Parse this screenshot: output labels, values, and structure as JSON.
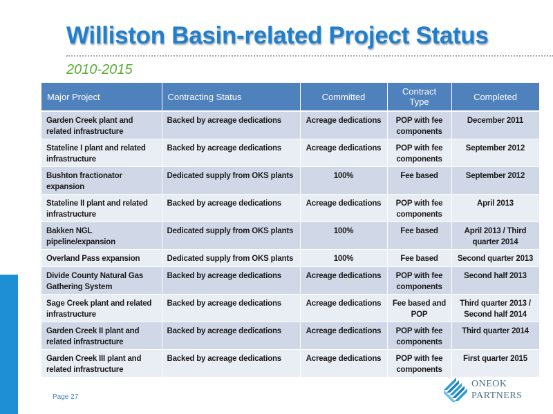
{
  "title": "Williston Basin-related Project Status",
  "subtitle": "2010-2015",
  "table": {
    "headers": [
      "Major Project",
      "Contracting Status",
      "Committed",
      "Contract Type",
      "Completed"
    ],
    "rows": [
      [
        "Garden Creek plant and related infrastructure",
        "Backed by acreage dedications",
        "Acreage dedications",
        "POP with fee components",
        "December 2011"
      ],
      [
        "Stateline I plant and related infrastructure",
        "Backed by acreage dedications",
        "Acreage dedications",
        "POP with fee components",
        "September 2012"
      ],
      [
        "Bushton fractionator expansion",
        "Dedicated supply from OKS plants",
        "100%",
        "Fee based",
        "September 2012"
      ],
      [
        "Stateline II plant and related infrastructure",
        "Backed by acreage dedications",
        "Acreage dedications",
        "POP with fee components",
        "April 2013"
      ],
      [
        "Bakken NGL pipeline/expansion",
        "Dedicated supply from OKS plants",
        "100%",
        "Fee based",
        "April 2013 / Third quarter 2014"
      ],
      [
        "Overland Pass expansion",
        "Dedicated supply from OKS plants",
        "100%",
        "Fee based",
        "Second quarter 2013"
      ],
      [
        "Divide County Natural Gas Gathering System",
        "Backed by acreage dedications",
        "Acreage dedications",
        "POP with fee components",
        "Second half 2013"
      ],
      [
        "Sage Creek plant and related infrastructure",
        "Backed by acreage dedications",
        "Acreage dedications",
        "Fee based and POP",
        "Third quarter 2013 / Second half 2014"
      ],
      [
        "Garden Creek II plant and related infrastructure",
        "Backed by acreage dedications",
        "Acreage dedications",
        "POP with fee components",
        "Third quarter 2014"
      ],
      [
        "Garden Creek III plant and related infrastructure",
        "Backed by acreage dedications",
        "Acreage dedications",
        "POP with fee components",
        "First quarter 2015"
      ]
    ]
  },
  "footer": {
    "page_label": "Page 27",
    "logo_line1": "ONEOK",
    "logo_line2": "PARTNERS"
  },
  "colors": {
    "title": "#1f7fcf",
    "subtitle": "#5aab31",
    "header_bg": "#4f81bd",
    "row_odd": "#d0d8e8",
    "row_even": "#e9edf4",
    "accent_bar": "#1e8fd4"
  }
}
